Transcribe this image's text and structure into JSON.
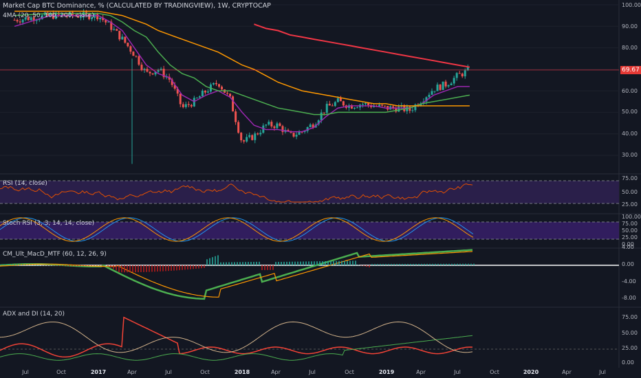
{
  "header": {
    "title": "Market Cap BTC Dominance, % (CALCULATED BY TRADINGVIEW), 1W, CRYPTOCAP",
    "ma_label": "4MA (20, 50, 100, 200, close)",
    "last_price": "69.67"
  },
  "panes": {
    "rsi_label": "RSI (14, close)",
    "stoch_label": "Stoch RSI (3, 3, 14, 14, close)",
    "macd_label": "CM_Ult_MacD_MTF (60, 12, 26, 9)",
    "adx_label": "ADX and DI (14, 20)"
  },
  "axes": {
    "price_ticks": [
      "100.00",
      "90.00",
      "80.00",
      "70.00",
      "60.00",
      "50.00",
      "40.00",
      "30.00"
    ],
    "rsi_ticks": [
      "75.00",
      "50.00",
      "25.00"
    ],
    "stoch_ticks": [
      "100.00",
      "75.00",
      "50.00",
      "25.00",
      "0.00"
    ],
    "macd_ticks": [
      "4.00",
      "0.00",
      "-4.00",
      "-8.00"
    ],
    "adx_ticks": [
      "75.00",
      "50.00",
      "25.00",
      "0.00"
    ],
    "x_ticks": [
      "Jul",
      "Oct",
      "2017",
      "Apr",
      "Jul",
      "Oct",
      "2018",
      "Apr",
      "Jul",
      "Oct",
      "2019",
      "Apr",
      "Jul",
      "Oct",
      "2020",
      "Apr",
      "Jul"
    ]
  },
  "colors": {
    "background": "#131722",
    "up": "#26a69a",
    "down": "#ef5350",
    "ma20": "#9c27b0",
    "ma50": "#4caf50",
    "ma100": "#ff9800",
    "ma200": "#f23645",
    "rsi_band": "#2a1f4a",
    "stoch_band": "#3a1f6e"
  },
  "chart_data": {
    "type": "candlestick",
    "title": "Market Cap BTC Dominance, % (CALCULATED BY TRADINGVIEW), 1W, CRYPTOCAP",
    "ylim": [
      25,
      100
    ],
    "x_range": [
      "2016-06",
      "2020-07"
    ],
    "last_value": 69.67,
    "price_path": [
      {
        "x": "2016-06",
        "y": 93
      },
      {
        "x": "2016-09",
        "y": 95
      },
      {
        "x": "2017-01",
        "y": 95
      },
      {
        "x": "2017-02",
        "y": 90
      },
      {
        "x": "2017-03",
        "y": 84
      },
      {
        "x": "2017-04",
        "y": 77
      },
      {
        "x": "2017-05",
        "y": 68
      },
      {
        "x": "2017-06",
        "y": 70
      },
      {
        "x": "2017-07",
        "y": 65
      },
      {
        "x": "2017-08",
        "y": 52
      },
      {
        "x": "2017-09",
        "y": 55
      },
      {
        "x": "2017-10",
        "y": 60
      },
      {
        "x": "2017-11",
        "y": 64
      },
      {
        "x": "2017-12",
        "y": 56
      },
      {
        "x": "2018-01",
        "y": 36
      },
      {
        "x": "2018-02",
        "y": 39
      },
      {
        "x": "2018-03",
        "y": 44
      },
      {
        "x": "2018-04",
        "y": 44
      },
      {
        "x": "2018-05",
        "y": 39
      },
      {
        "x": "2018-06",
        "y": 41
      },
      {
        "x": "2018-07",
        "y": 45
      },
      {
        "x": "2018-08",
        "y": 52
      },
      {
        "x": "2018-09",
        "y": 55
      },
      {
        "x": "2018-10",
        "y": 53
      },
      {
        "x": "2018-11",
        "y": 54
      },
      {
        "x": "2018-12",
        "y": 53
      },
      {
        "x": "2019-01",
        "y": 52
      },
      {
        "x": "2019-02",
        "y": 52
      },
      {
        "x": "2019-03",
        "y": 51
      },
      {
        "x": "2019-04",
        "y": 56
      },
      {
        "x": "2019-05",
        "y": 61
      },
      {
        "x": "2019-06",
        "y": 63
      },
      {
        "x": "2019-07",
        "y": 67
      },
      {
        "x": "2019-08",
        "y": 69.67
      }
    ],
    "series": [
      {
        "name": "MA20",
        "values": [
          90,
          95,
          95,
          92,
          88,
          80,
          72,
          68,
          66,
          58,
          55,
          58,
          60,
          57,
          50,
          44,
          42,
          42,
          41,
          41,
          43,
          48,
          52,
          53,
          53,
          53,
          52,
          52,
          52,
          54,
          58,
          60,
          62,
          62
        ]
      },
      {
        "name": "MA50",
        "values": [
          95,
          96,
          96,
          95,
          92,
          88,
          85,
          78,
          72,
          68,
          66,
          62,
          60,
          60,
          58,
          56,
          54,
          52,
          51,
          50,
          49,
          49,
          50,
          50,
          50,
          50,
          50,
          51,
          52,
          54,
          55,
          56,
          57,
          58
        ]
      },
      {
        "name": "MA100",
        "values": [
          97,
          97,
          97,
          96,
          95,
          93,
          91,
          88,
          86,
          84,
          82,
          80,
          78,
          75,
          72,
          70,
          67,
          64,
          62,
          60,
          59,
          58,
          57,
          56,
          55,
          54,
          54,
          53,
          53,
          53,
          53,
          53,
          53,
          53
        ]
      },
      {
        "name": "MA200",
        "values": [
          null,
          null,
          null,
          null,
          null,
          null,
          null,
          null,
          null,
          null,
          null,
          null,
          null,
          null,
          null,
          91,
          89,
          88,
          86,
          85,
          84,
          83,
          82,
          81,
          80,
          79,
          78,
          77,
          76,
          75,
          74,
          73,
          72,
          71
        ]
      }
    ],
    "annotations": [
      "69.67"
    ]
  }
}
